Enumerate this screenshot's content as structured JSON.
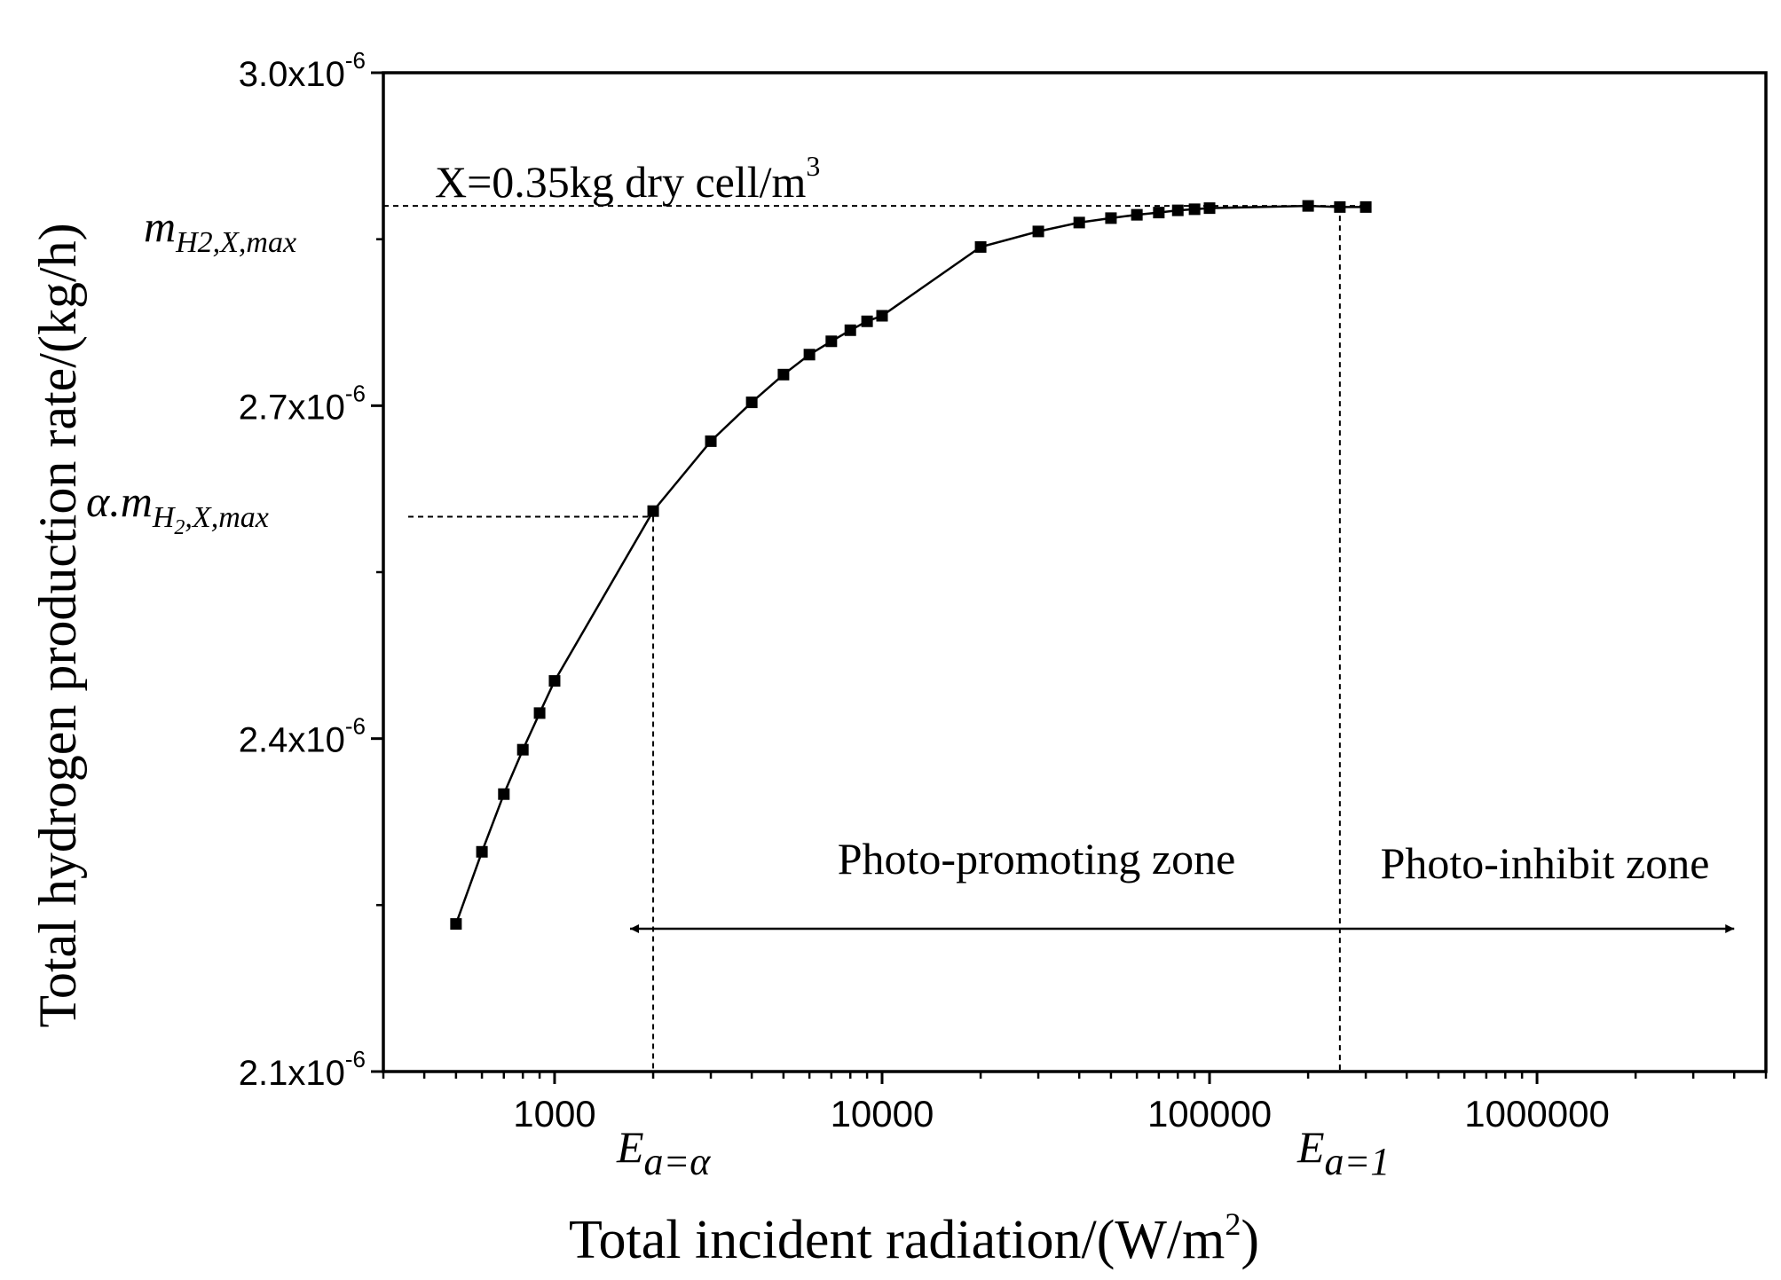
{
  "chart_data": {
    "type": "scatter",
    "title": "",
    "xlabel": "Total incident radiation/(W/m",
    "xlabel_sup": "2",
    "xlabel_close": ")",
    "ylabel": "Total hydrogen production rate/(kg/h)",
    "xscale": "log",
    "xlim": [
      300,
      5000000
    ],
    "ylim": [
      2.1e-06,
      3e-06
    ],
    "x_ticks": [
      {
        "value": 1000,
        "label": "1000"
      },
      {
        "value": 10000,
        "label": "10000"
      },
      {
        "value": 100000,
        "label": "100000"
      },
      {
        "value": 1000000,
        "label": "1000000"
      }
    ],
    "y_ticks": [
      {
        "value": 2.1e-06,
        "mantissa": "2.1x10",
        "exp": "-6"
      },
      {
        "value": 2.4e-06,
        "mantissa": "2.4x10",
        "exp": "-6"
      },
      {
        "value": 2.7e-06,
        "mantissa": "2.7x10",
        "exp": "-6"
      },
      {
        "value": 3e-06,
        "mantissa": "3.0x10",
        "exp": "-6"
      }
    ],
    "series": [
      {
        "marker": "square",
        "color": "#000000",
        "x": [
          500,
          600,
          700,
          800,
          900,
          1000,
          2000,
          3000,
          4000,
          5000,
          6000,
          7000,
          8000,
          9000,
          10000,
          20000,
          30000,
          40000,
          50000,
          60000,
          70000,
          80000,
          90000,
          100000,
          200000,
          250000,
          300000
        ],
        "y": [
          2.233e-06,
          2.298e-06,
          2.35e-06,
          2.39e-06,
          2.423e-06,
          2.452e-06,
          2.605e-06,
          2.668e-06,
          2.703e-06,
          2.728e-06,
          2.746e-06,
          2.758e-06,
          2.768e-06,
          2.776e-06,
          2.781e-06,
          2.843e-06,
          2.857e-06,
          2.865e-06,
          2.869e-06,
          2.872e-06,
          2.874e-06,
          2.876e-06,
          2.877e-06,
          2.878e-06,
          2.88e-06,
          2.879e-06,
          2.879e-06
        ]
      }
    ],
    "reference_lines": {
      "y_max": 2.88e-06,
      "y_alpha": 2.6e-06,
      "x_alpha": 2000,
      "x_one": 250000,
      "y_max_xend": 300000
    },
    "annotations": {
      "condition_main": "X=0.35kg dry cell/m",
      "condition_sup": "3",
      "m_max_m": "m",
      "m_max_sub": "H2,X,max",
      "alpha_m_prefix": "α.m",
      "alpha_m_sub1": "H",
      "alpha_m_sub2": "2",
      "alpha_m_sub3": ",X,max",
      "e_alpha_e": "E",
      "e_alpha_sub": "a=α",
      "e_one_e": "E",
      "e_one_sub": "a=1",
      "zone_promoting": "Photo-promoting zone",
      "zone_inhibit": "Photo-inhibit zone"
    },
    "arrow": {
      "x_start": 1700,
      "x_mid": 250000,
      "x_end": 4000000
    },
    "grid": false,
    "legend": "none"
  }
}
